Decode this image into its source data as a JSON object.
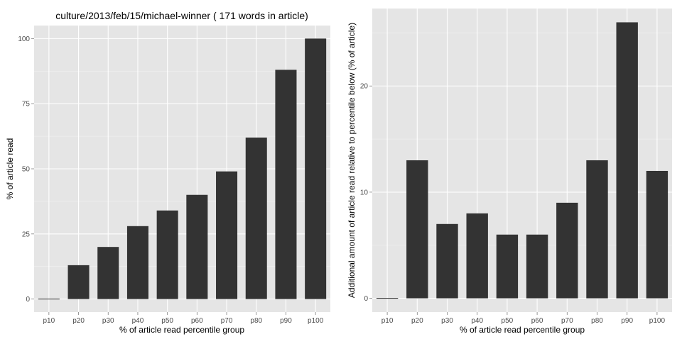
{
  "colors": {
    "panel_background": "#e5e5e5",
    "grid_major": "#ffffff",
    "grid_minor": "#f2f2f2",
    "bar_fill": "#333333",
    "axis_text": "#4d4d4d",
    "title_text": "#000000"
  },
  "chart_data": [
    {
      "type": "bar",
      "title": "culture/2013/feb/15/michael-winner ( 171 words in article)",
      "xlabel": "% of article read percentile group",
      "ylabel": "% of article read",
      "categories": [
        "p10",
        "p20",
        "p30",
        "p40",
        "p50",
        "p60",
        "p70",
        "p80",
        "p90",
        "p100"
      ],
      "values": [
        0,
        13,
        20,
        28,
        34,
        40,
        49,
        62,
        88,
        100
      ],
      "ylim": [
        -5,
        105
      ],
      "yticks": [
        0,
        25,
        50,
        75,
        100
      ],
      "ytick_labels": [
        "0",
        "25",
        "50",
        "75",
        "100"
      ],
      "grid": true
    },
    {
      "type": "bar",
      "title": "",
      "xlabel": "% of article read percentile group",
      "ylabel": "Additional amount of article read relative to percentile below (% of article)",
      "categories": [
        "p10",
        "p20",
        "p30",
        "p40",
        "p50",
        "p60",
        "p70",
        "p80",
        "p90",
        "p100"
      ],
      "values": [
        0,
        13,
        7,
        8,
        6,
        6,
        9,
        13,
        26,
        12
      ],
      "ylim": [
        -1.3,
        27.3
      ],
      "yticks": [
        0,
        10,
        20
      ],
      "ytick_labels": [
        "0",
        "10",
        "20"
      ],
      "grid": true
    }
  ]
}
